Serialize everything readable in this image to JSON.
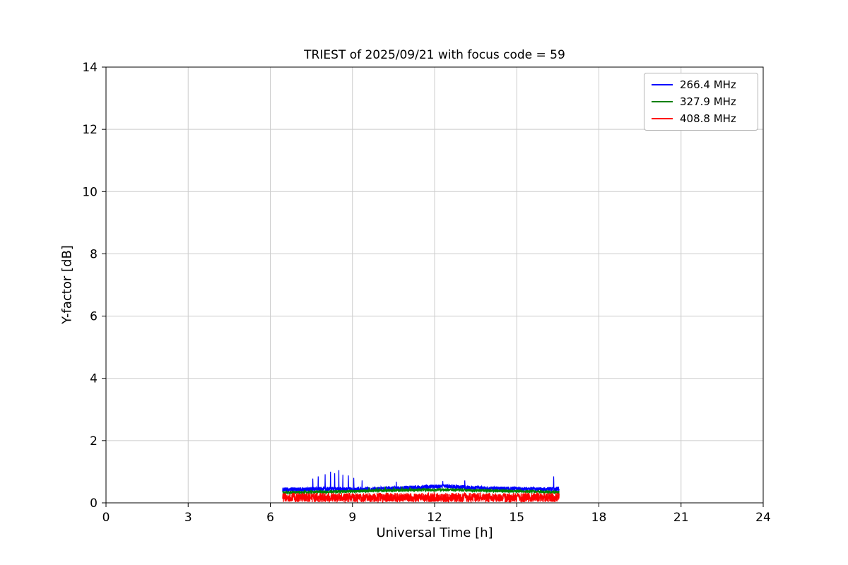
{
  "chart_data": {
    "type": "line",
    "title": "TRIEST of 2025/09/21 with focus code = 59",
    "xlabel": "Universal Time [h]",
    "ylabel": "Y-factor [dB]",
    "xlim": [
      0,
      24
    ],
    "ylim": [
      0,
      14
    ],
    "xticks": [
      0,
      3,
      6,
      9,
      12,
      15,
      18,
      21,
      24
    ],
    "yticks": [
      0,
      2,
      4,
      6,
      8,
      10,
      12,
      14
    ],
    "grid": true,
    "grid_color": "#cccccc",
    "background_color": "#ffffff",
    "spine_color": "#000000",
    "legend_position": "upper right",
    "y_min_clip": 0.02,
    "series": [
      {
        "name": "266.4 MHz",
        "color": "#0000ff",
        "x_start": 6.45,
        "x_end": 16.55,
        "mean_points": [
          [
            6.45,
            0.42
          ],
          [
            7.0,
            0.43
          ],
          [
            8.0,
            0.45
          ],
          [
            9.0,
            0.44
          ],
          [
            10.0,
            0.45
          ],
          [
            11.0,
            0.48
          ],
          [
            12.0,
            0.52
          ],
          [
            12.5,
            0.53
          ],
          [
            13.0,
            0.5
          ],
          [
            14.0,
            0.46
          ],
          [
            15.0,
            0.45
          ],
          [
            16.0,
            0.43
          ],
          [
            16.55,
            0.45
          ]
        ],
        "noise_halfwidth": 0.07,
        "spikes": [
          [
            7.55,
            0.78
          ],
          [
            7.75,
            0.85
          ],
          [
            8.0,
            0.92
          ],
          [
            8.2,
            1.0
          ],
          [
            8.35,
            0.95
          ],
          [
            8.5,
            1.05
          ],
          [
            8.65,
            0.9
          ],
          [
            8.85,
            0.88
          ],
          [
            9.05,
            0.8
          ],
          [
            9.35,
            0.72
          ],
          [
            10.6,
            0.68
          ],
          [
            12.3,
            0.7
          ],
          [
            13.1,
            0.72
          ],
          [
            16.35,
            0.85
          ]
        ]
      },
      {
        "name": "327.9 MHz",
        "color": "#008000",
        "x_start": 6.45,
        "x_end": 16.55,
        "mean_points": [
          [
            6.45,
            0.33
          ],
          [
            8.0,
            0.35
          ],
          [
            9.5,
            0.38
          ],
          [
            10.5,
            0.4
          ],
          [
            11.5,
            0.42
          ],
          [
            12.5,
            0.42
          ],
          [
            13.5,
            0.4
          ],
          [
            15.0,
            0.37
          ],
          [
            16.55,
            0.34
          ]
        ],
        "noise_halfwidth": 0.05,
        "spikes": [
          [
            9.6,
            0.5
          ],
          [
            9.9,
            0.5
          ],
          [
            10.2,
            0.52
          ],
          [
            10.5,
            0.5
          ],
          [
            10.8,
            0.52
          ],
          [
            11.1,
            0.5
          ]
        ]
      },
      {
        "name": "408.8 MHz",
        "color": "#ff0000",
        "x_start": 6.45,
        "x_end": 16.55,
        "mean_points": [
          [
            6.45,
            0.17
          ],
          [
            16.55,
            0.17
          ]
        ],
        "noise_halfwidth": 0.15,
        "spikes": []
      }
    ]
  }
}
